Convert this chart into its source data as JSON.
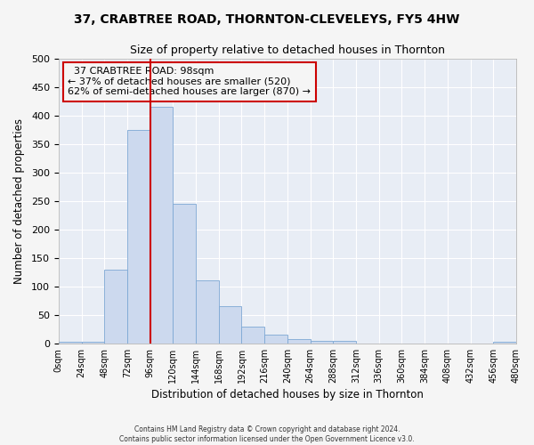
{
  "title": "37, CRABTREE ROAD, THORNTON-CLEVELEYS, FY5 4HW",
  "subtitle": "Size of property relative to detached houses in Thornton",
  "xlabel": "Distribution of detached houses by size in Thornton",
  "ylabel": "Number of detached properties",
  "bin_edges": [
    0,
    24,
    48,
    72,
    96,
    120,
    144,
    168,
    192,
    216,
    240,
    264,
    288,
    312,
    336,
    360,
    384,
    408,
    432,
    456,
    480
  ],
  "bar_heights": [
    3,
    3,
    130,
    375,
    415,
    245,
    110,
    65,
    30,
    15,
    8,
    5,
    5,
    0,
    0,
    0,
    0,
    0,
    0,
    3
  ],
  "bar_color": "#ccd9ee",
  "bar_edge_color": "#7da8d4",
  "vline_x": 96,
  "vline_color": "#cc0000",
  "annotation_title": "37 CRABTREE ROAD: 98sqm",
  "annotation_line1": "← 37% of detached houses are smaller (520)",
  "annotation_line2": "62% of semi-detached houses are larger (870) →",
  "annotation_box_facecolor": "#f5f5f5",
  "annotation_box_edgecolor": "#cc0000",
  "ylim": [
    0,
    500
  ],
  "yticks": [
    0,
    50,
    100,
    150,
    200,
    250,
    300,
    350,
    400,
    450,
    500
  ],
  "xtick_labels": [
    "0sqm",
    "24sqm",
    "48sqm",
    "72sqm",
    "96sqm",
    "120sqm",
    "144sqm",
    "168sqm",
    "192sqm",
    "216sqm",
    "240sqm",
    "264sqm",
    "288sqm",
    "312sqm",
    "336sqm",
    "360sqm",
    "384sqm",
    "408sqm",
    "432sqm",
    "456sqm",
    "480sqm"
  ],
  "footer1": "Contains HM Land Registry data © Crown copyright and database right 2024.",
  "footer2": "Contains public sector information licensed under the Open Government Licence v3.0.",
  "fig_facecolor": "#f5f5f5",
  "ax_facecolor": "#e8edf5",
  "grid_color": "#ffffff",
  "title_fontsize": 10,
  "subtitle_fontsize": 9
}
